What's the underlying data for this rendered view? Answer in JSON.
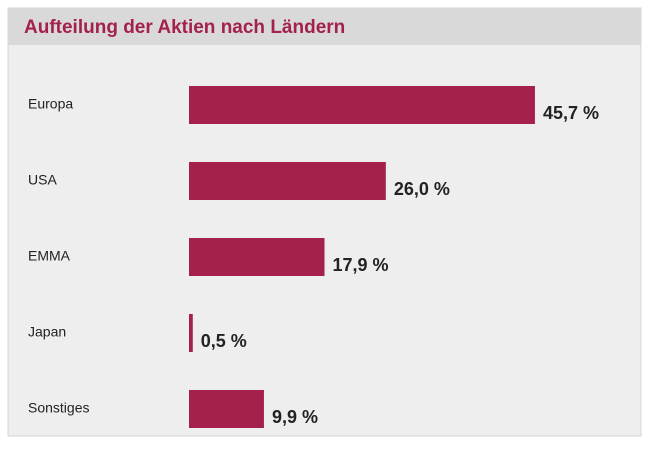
{
  "chart_data": {
    "type": "bar",
    "orientation": "horizontal",
    "title": "Aufteilung der Aktien nach Ländern",
    "categories": [
      "Europa",
      "USA",
      "EMMA",
      "Japan",
      "Sonstiges"
    ],
    "values": [
      45.7,
      26.0,
      17.9,
      0.5,
      9.9
    ],
    "value_labels": [
      "45,7 %",
      "26,0 %",
      "17,9 %",
      "0,5 %",
      "9,9 %"
    ],
    "color": "#a3214a"
  }
}
